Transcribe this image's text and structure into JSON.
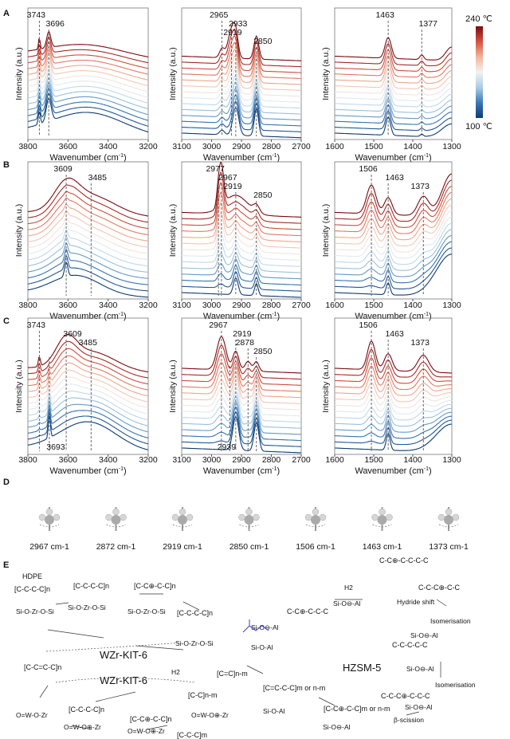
{
  "panel_labels": {
    "A": "A",
    "B": "B",
    "C": "C",
    "D": "D",
    "E": "E"
  },
  "colorbar": {
    "max_label": "240 ℃",
    "min_label": "100 ℃",
    "colors": [
      "#0d3b73",
      "#3a78b5",
      "#a9cde4",
      "#f2f2f2",
      "#f4b49a",
      "#d6523f",
      "#7a0a10"
    ]
  },
  "chart_data": [
    {
      "type": "line",
      "row": "A",
      "xlabel": "Wavenumber (cm-1)",
      "ylabel": "Intensity (a.u.)",
      "xlim": [
        3800,
        3200
      ],
      "xticks": [
        "3800",
        "3600",
        "3400",
        "3200"
      ],
      "curves": 14,
      "temperature_range": [
        "100 ℃",
        "240 ℃"
      ],
      "peaks": [
        "3743",
        "3696"
      ]
    },
    {
      "type": "line",
      "row": "A",
      "xlabel": "Wavenumber (cm-1)",
      "ylabel": "Intensity (a.u.)",
      "xlim": [
        3100,
        2700
      ],
      "xticks": [
        "3100",
        "3000",
        "2900",
        "2800",
        "2700"
      ],
      "curves": 14,
      "peaks": [
        "2965",
        "2933",
        "2919",
        "2850"
      ]
    },
    {
      "type": "line",
      "row": "A",
      "xlabel": "Wavenumber (cm-1)",
      "ylabel": "Intensity (a.u.)",
      "xlim": [
        1600,
        1300
      ],
      "xticks": [
        "1600",
        "1500",
        "1400",
        "1300"
      ],
      "curves": 14,
      "peaks": [
        "1463",
        "1377"
      ]
    },
    {
      "type": "line",
      "row": "B",
      "xlabel": "Wavenumber (cm-1)",
      "ylabel": "Intensity (a.u.)",
      "xlim": [
        3800,
        3200
      ],
      "xticks": [
        "3800",
        "3600",
        "3400",
        "3200"
      ],
      "curves": 14,
      "peaks": [
        "3609",
        "3485"
      ]
    },
    {
      "type": "line",
      "row": "B",
      "xlabel": "Wavenumber (cm-1)",
      "ylabel": "Intensity (a.u.)",
      "xlim": [
        3100,
        2700
      ],
      "xticks": [
        "3100",
        "3000",
        "2900",
        "2800",
        "2700"
      ],
      "curves": 14,
      "peaks": [
        "2977",
        "2967",
        "2919",
        "2850"
      ]
    },
    {
      "type": "line",
      "row": "B",
      "xlabel": "Wavenumber (cm-1)",
      "ylabel": "Intensity (a.u.)",
      "xlim": [
        1600,
        1300
      ],
      "xticks": [
        "1600",
        "1500",
        "1400",
        "1300"
      ],
      "curves": 14,
      "peaks": [
        "1506",
        "1463",
        "1373"
      ]
    },
    {
      "type": "line",
      "row": "C",
      "xlabel": "Wavenumber (cm-1)",
      "ylabel": "Intensity (a.u.)",
      "xlim": [
        3800,
        3200
      ],
      "xticks": [
        "3800",
        "3600",
        "3400",
        "3200"
      ],
      "curves": 14,
      "peaks": [
        "3743",
        "3609",
        "3485",
        "3693"
      ]
    },
    {
      "type": "line",
      "row": "C",
      "xlabel": "Wavenumber (cm-1)",
      "ylabel": "Intensity (a.u.)",
      "xlim": [
        3100,
        2700
      ],
      "xticks": [
        "3100",
        "3000",
        "2900",
        "2800",
        "2700"
      ],
      "curves": 14,
      "peaks": [
        "2967",
        "2919",
        "2878",
        "2850",
        "2939"
      ]
    },
    {
      "type": "line",
      "row": "C",
      "xlabel": "Wavenumber (cm-1)",
      "ylabel": "Intensity (a.u.)",
      "xlim": [
        1600,
        1300
      ],
      "xticks": [
        "1600",
        "1500",
        "1400",
        "1300"
      ],
      "curves": 14,
      "peaks": [
        "1506",
        "1463",
        "1373"
      ]
    }
  ],
  "modes": [
    "2967 cm-1",
    "2872 cm-1",
    "2919 cm-1",
    "2850 cm-1",
    "1506 cm-1",
    "1463 cm-1",
    "1373 cm-1"
  ],
  "scheme": {
    "labels": [
      "HDPE",
      "WZr-KIT-6",
      "WZr-KIT-6",
      "HZSM-5",
      "H2",
      "H2",
      "Hydride shift",
      "Isomerisation",
      "Isomerisation",
      "β-scission"
    ],
    "fragments": [
      "[C-C-C-C]n",
      "[C-C-C-C]n",
      "[C-C⊕-C-C]n",
      "[C-C-C-C]n",
      "[C-C=C-C]n",
      "[C=C]n-m",
      "[C-C]n-m",
      "[C-C-C-C]n",
      "[C-C⊕-C-C]n",
      "[C-C-C]m",
      "[C=C-C-C]m or n-m",
      "[C-C⊕-C-C]m or n-m",
      "C-C⊕-C-C-C-C",
      "C-C⊕-C-C-C",
      "C-C-C⊕-C-C",
      "C-C-C-C-C",
      "C-C-C⊕-C-C-C"
    ],
    "sites": [
      "Si-O-Zr-O-Si",
      "Si-O-Zr-O-Si",
      "Si-O-Zr-O-Si",
      "Si-O-Zr-O-Si",
      "O=W-O-Zr",
      "O=W-O⊕-Zr",
      "O=W-O⊕-Zr",
      "O=W-O⊕-Zr",
      "Si-O-Al",
      "Si-O⊖-Al",
      "Si-O⊖-Al",
      "Si-O-Al",
      "Si-O⊖-Al",
      "Si-O⊖-Al",
      "Si-O⊖-Al",
      "Si-O⊖-Al"
    ]
  }
}
